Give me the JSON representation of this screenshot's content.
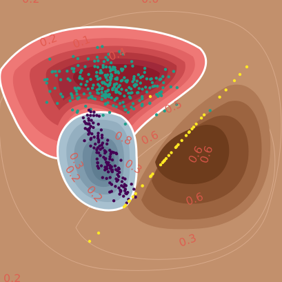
{
  "chart_data": {
    "type": "scatter",
    "description_free": true,
    "background": "contour",
    "contours": {
      "colors": {
        "background": "#c2906c",
        "red_outer": "#ef7876",
        "red_inner": "#8e1a2a",
        "brown_outer": "#a36e4c",
        "brown_inner": "#5e2a10",
        "blue_outer": "#a7c0cf",
        "blue_inner": "#5f7d91",
        "boundary": "#ffffff",
        "label": "#e0584c"
      },
      "labels": [
        "0.2",
        "0.0",
        "0.2",
        "0.1",
        "0.4",
        "0.5",
        "0.6",
        "0.8",
        "0.2",
        "0.6",
        "0.2",
        "0.3",
        "0.3",
        "0.6",
        "0.6",
        "0.3",
        "0.2"
      ]
    },
    "series": [
      {
        "class": 0,
        "color": "#1f9e89",
        "count": 260
      },
      {
        "class": 1,
        "color": "#440154",
        "count": 140
      },
      {
        "class": 2,
        "color": "#fde725",
        "count": 40
      }
    ],
    "grid": false,
    "legend": "none"
  }
}
